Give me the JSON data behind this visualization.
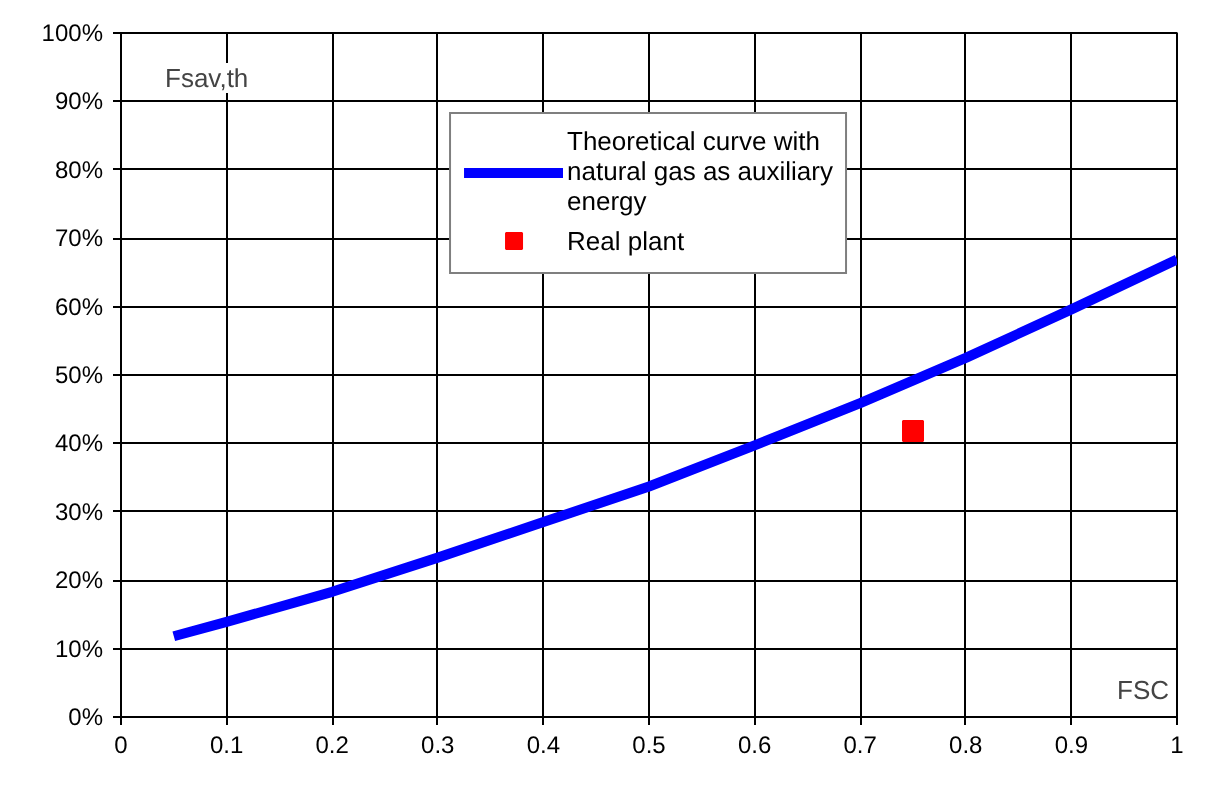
{
  "chart_data": {
    "type": "line",
    "xlabel": "FSC",
    "ylabel": "Fsav,th",
    "xlim": [
      0,
      1
    ],
    "ylim": [
      0,
      100
    ],
    "xticks": [
      0,
      0.1,
      0.2,
      0.3,
      0.4,
      0.5,
      0.6,
      0.7,
      0.8,
      0.9,
      1
    ],
    "yticks": [
      {
        "value": 0,
        "label": "0%"
      },
      {
        "value": 10,
        "label": "10%"
      },
      {
        "value": 20,
        "label": "20%"
      },
      {
        "value": 30,
        "label": "30%"
      },
      {
        "value": 40,
        "label": "40%"
      },
      {
        "value": 50,
        "label": "50%"
      },
      {
        "value": 60,
        "label": "60%"
      },
      {
        "value": 70,
        "label": "70%"
      },
      {
        "value": 80,
        "label": "80%"
      },
      {
        "value": 90,
        "label": "90%"
      },
      {
        "value": 100,
        "label": "100%"
      }
    ],
    "grid": true,
    "legend": "top",
    "series": [
      {
        "name": "Theoretical curve with natural gas as auxiliary energy",
        "color": "#0000ff",
        "marker": "none",
        "line_style": "solid",
        "x": [
          0.05,
          0.1,
          0.2,
          0.3,
          0.4,
          0.5,
          0.6,
          0.7,
          0.8,
          0.9,
          1
        ],
        "values": [
          11.8,
          13.9,
          18.3,
          23.3,
          28.5,
          33.7,
          39.7,
          45.9,
          52.5,
          59.6,
          66.9
        ]
      },
      {
        "name": "Real plant",
        "type": "scatter",
        "color": "#ff0000",
        "marker": "square",
        "x": [
          0.75
        ],
        "values": [
          41.8
        ]
      }
    ]
  }
}
